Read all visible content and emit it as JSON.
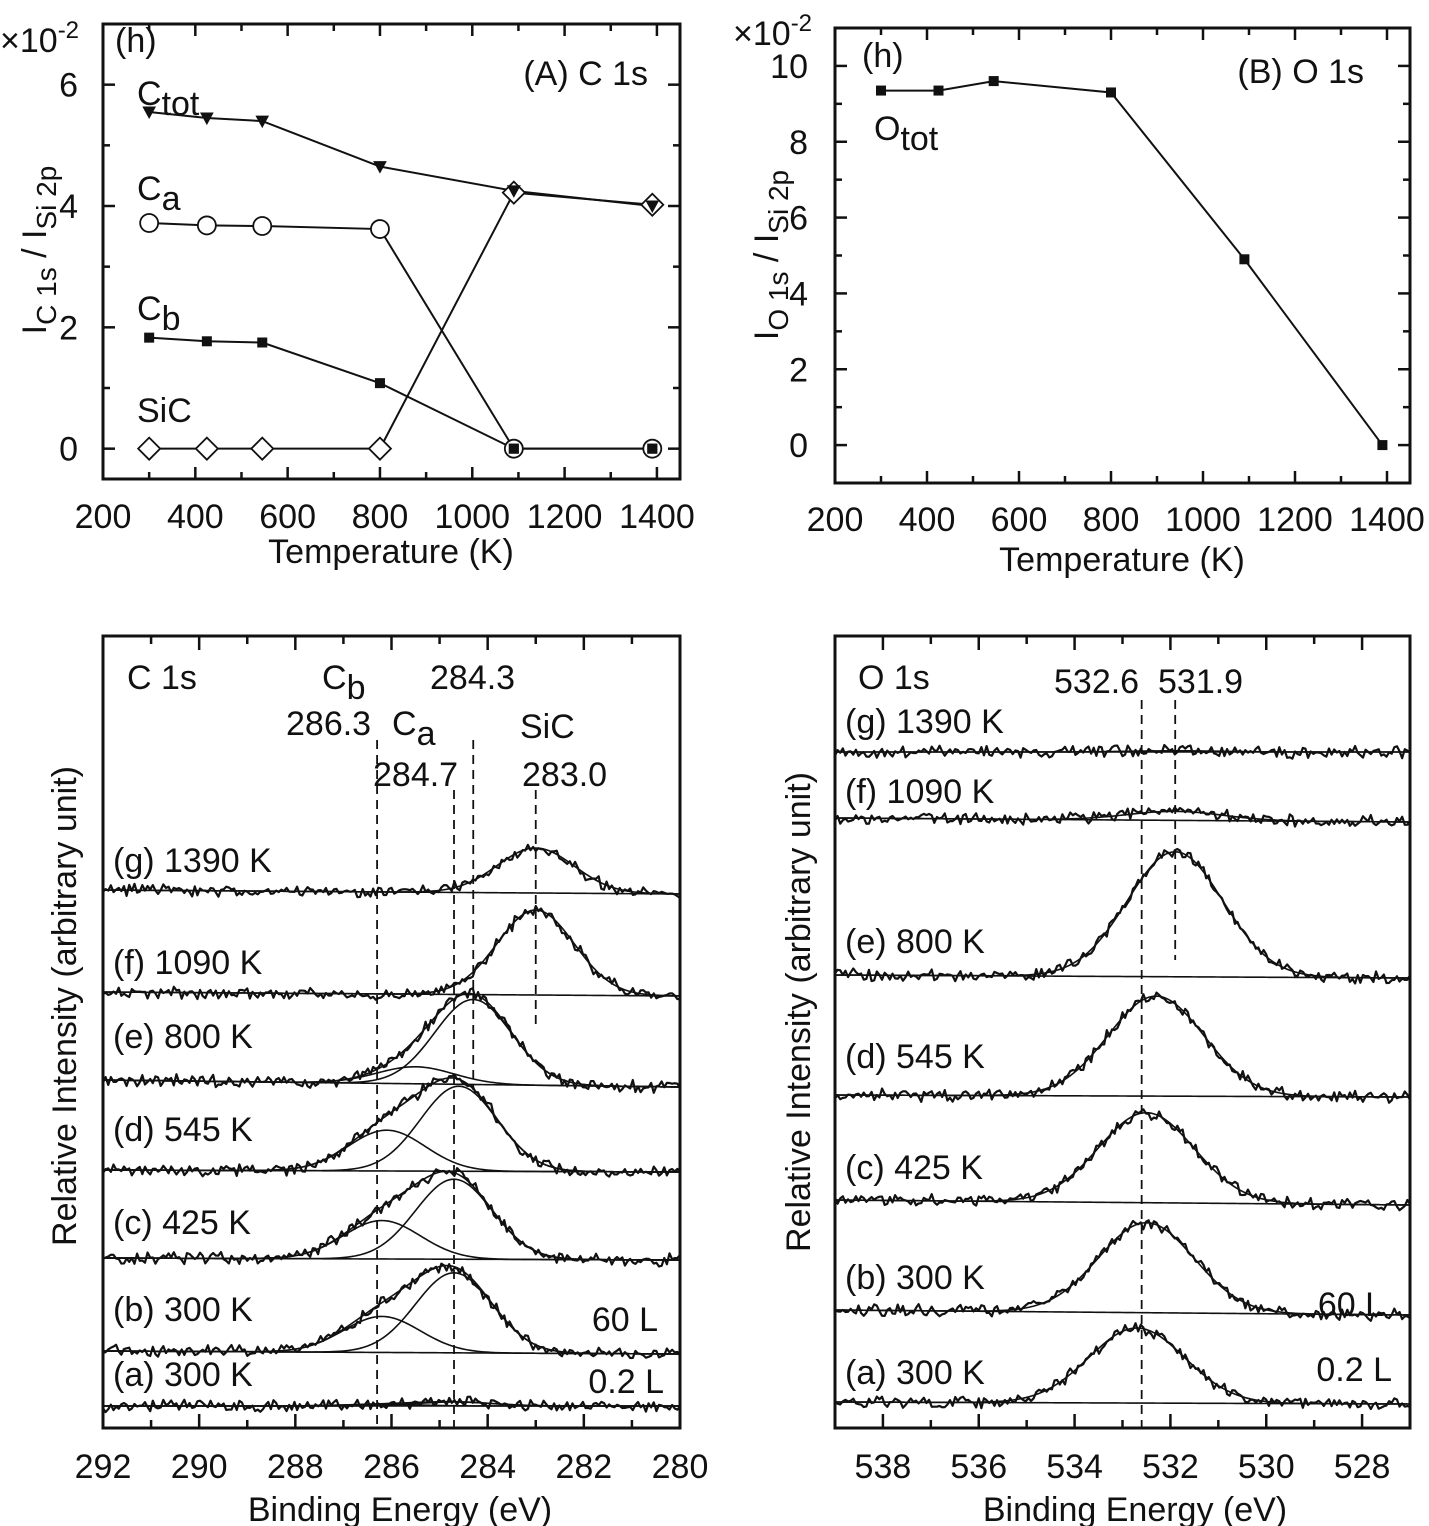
{
  "chart_data": [
    {
      "panel": "A",
      "type": "line",
      "panel_letter": "(h)",
      "title": "(A) C 1s",
      "multiplier": "×10",
      "multiplier_exp": "-2",
      "xlabel": "Temperature (K)",
      "ylabel_main": "I",
      "ylabel_sub1": "C 1s",
      "ylabel_mid": " / I",
      "ylabel_sub2": "Si 2p",
      "xlim": [
        200,
        1450
      ],
      "ylim": [
        -0.5,
        7
      ],
      "xticks": [
        200,
        400,
        600,
        800,
        1000,
        1200,
        1400
      ],
      "yticks": [
        0,
        2,
        4,
        6
      ],
      "x": [
        300,
        425,
        545,
        800,
        1090,
        1390
      ],
      "series": [
        {
          "name": "C",
          "name_sub": "tot",
          "marker": "triangle-down-filled",
          "values": [
            5.55,
            5.45,
            5.4,
            4.65,
            4.25,
            4.0
          ]
        },
        {
          "name": "C",
          "name_sub": "a",
          "marker": "circle-open",
          "values": [
            3.72,
            3.68,
            3.67,
            3.62,
            0.0,
            0.0
          ]
        },
        {
          "name": "C",
          "name_sub": "b",
          "marker": "square-filled",
          "values": [
            1.83,
            1.77,
            1.75,
            1.08,
            0.0,
            0.0
          ]
        },
        {
          "name": "SiC",
          "name_sub": "",
          "marker": "diamond-open",
          "values": [
            0.0,
            0.0,
            0.0,
            0.0,
            4.22,
            4.02
          ]
        }
      ]
    },
    {
      "panel": "B",
      "type": "line",
      "panel_letter": "(h)",
      "title": "(B) O 1s",
      "multiplier": "×10",
      "multiplier_exp": "-2",
      "xlabel": "Temperature (K)",
      "ylabel_main": "I",
      "ylabel_sub1": "O 1s",
      "ylabel_mid": " / I",
      "ylabel_sub2": "Si 2p",
      "xlim": [
        200,
        1450
      ],
      "ylim": [
        -1,
        11
      ],
      "xticks": [
        200,
        400,
        600,
        800,
        1000,
        1200,
        1400
      ],
      "yticks": [
        0,
        2,
        4,
        6,
        8,
        10
      ],
      "x": [
        300,
        425,
        545,
        800,
        1090,
        1390
      ],
      "series": [
        {
          "name": "O",
          "name_sub": "tot",
          "marker": "square-filled",
          "values": [
            9.35,
            9.35,
            9.6,
            9.3,
            4.9,
            0.0
          ]
        }
      ]
    },
    {
      "panel": "C",
      "type": "line",
      "title": "C 1s",
      "xlabel": "Binding Energy (eV)",
      "ylabel": "Relative Intensity (arbitrary unit)",
      "xlim": [
        292,
        280
      ],
      "xticks": [
        292,
        290,
        288,
        286,
        284,
        282,
        280
      ],
      "reference_lines": [
        {
          "label": "286.3",
          "x": 286.3
        },
        {
          "label": "284.7",
          "x": 284.7
        },
        {
          "label": "284.3",
          "x": 284.3
        },
        {
          "label": "283.0",
          "x": 283.0
        }
      ],
      "peak_names": {
        "cb": "C",
        "cb_sub": "b",
        "ca": "C",
        "ca_sub": "a",
        "sic": "SiC"
      },
      "exposure_labels": [
        "60 L",
        "0.2 L"
      ],
      "spectra": [
        {
          "label": "(a) 300 K",
          "peaks": [
            {
              "center": 286.2,
              "height": 0.08
            },
            {
              "center": 284.7,
              "height": 0.2
            }
          ]
        },
        {
          "label": "(b) 300 K",
          "peaks": [
            {
              "center": 286.2,
              "height": 0.45
            },
            {
              "center": 284.7,
              "height": 1.0
            }
          ]
        },
        {
          "label": "(c) 425 K",
          "peaks": [
            {
              "center": 286.2,
              "height": 0.48
            },
            {
              "center": 284.7,
              "height": 1.0
            }
          ]
        },
        {
          "label": "(d) 545 K",
          "peaks": [
            {
              "center": 286.1,
              "height": 0.48
            },
            {
              "center": 284.6,
              "height": 1.0
            }
          ]
        },
        {
          "label": "(e) 800 K",
          "peaks": [
            {
              "center": 285.5,
              "height": 0.2
            },
            {
              "center": 284.3,
              "height": 1.0
            }
          ]
        },
        {
          "label": "(f) 1090 K",
          "peaks": [
            {
              "center": 283.0,
              "height": 1.0
            }
          ]
        },
        {
          "label": "(g) 1390 K",
          "peaks": [
            {
              "center": 283.0,
              "height": 0.75
            }
          ]
        }
      ]
    },
    {
      "panel": "D",
      "type": "line",
      "title": "O 1s",
      "xlabel": "Binding Energy (eV)",
      "ylabel": "Relative Intensity (arbitrary unit)",
      "xlim": [
        539,
        527
      ],
      "xticks": [
        538,
        536,
        534,
        532,
        530,
        528
      ],
      "reference_lines": [
        {
          "label": "532.6",
          "x": 532.6
        },
        {
          "label": "531.9",
          "x": 531.9
        }
      ],
      "exposure_labels": [
        "60 L",
        "0.2 L"
      ],
      "spectra": [
        {
          "label": "(a) 300 K",
          "peaks": [
            {
              "center": 532.7,
              "height": 1.0
            }
          ]
        },
        {
          "label": "(b) 300 K",
          "peaks": [
            {
              "center": 532.5,
              "height": 1.0
            }
          ]
        },
        {
          "label": "(c) 425 K",
          "peaks": [
            {
              "center": 532.5,
              "height": 1.0
            }
          ]
        },
        {
          "label": "(d) 545 K",
          "peaks": [
            {
              "center": 532.3,
              "height": 1.0
            }
          ]
        },
        {
          "label": "(e) 800 K",
          "peaks": [
            {
              "center": 531.9,
              "height": 1.0
            }
          ]
        },
        {
          "label": "(f) 1090 K",
          "peaks": [
            {
              "center": 531.9,
              "height": 0.3
            }
          ]
        },
        {
          "label": "(g) 1390 K",
          "peaks": [
            {
              "center": 531.9,
              "height": 0.1
            }
          ]
        }
      ]
    }
  ]
}
